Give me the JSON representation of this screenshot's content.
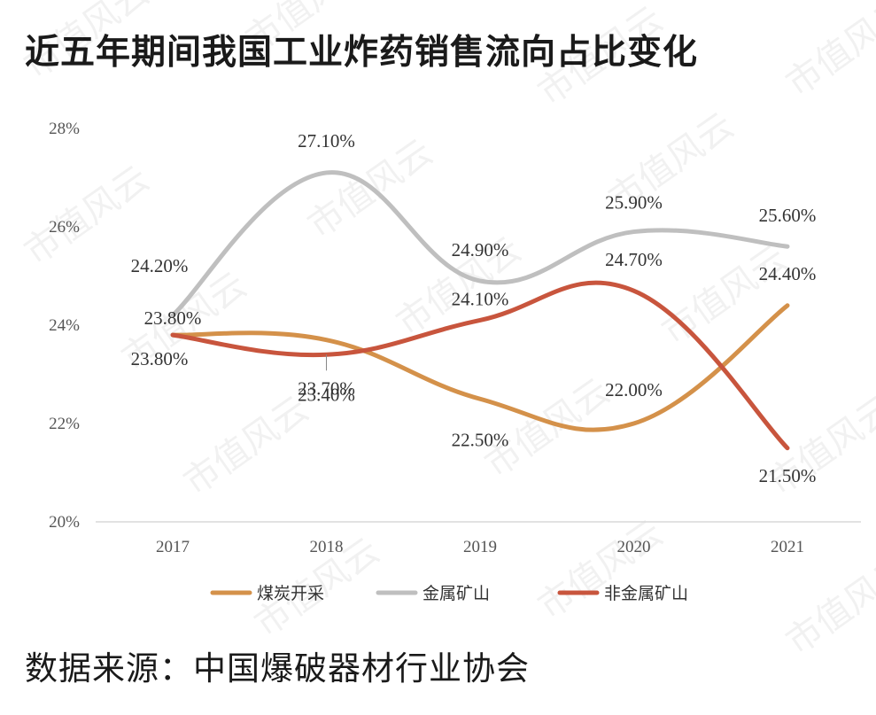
{
  "title": "近五年期间我国工业炸药销售流向占比变化",
  "source": "数据来源：中国爆破器材行业协会",
  "watermark": "市值风云",
  "chart_data": {
    "type": "line",
    "title": "近五年期间我国工业炸药销售流向占比变化",
    "x": [
      "2017",
      "2018",
      "2019",
      "2020",
      "2021"
    ],
    "ylim": [
      20,
      28
    ],
    "yticks": [
      20,
      22,
      24,
      26,
      28
    ],
    "ytick_labels": [
      "20%",
      "22%",
      "24%",
      "26%",
      "28%"
    ],
    "grid": false,
    "legend_position": "bottom",
    "smooth": true,
    "series": [
      {
        "name": "煤炭开采",
        "color": "#d4914a",
        "values": [
          23.8,
          23.7,
          22.5,
          22.0,
          24.4
        ],
        "labels": [
          "23.80%",
          "23.70%",
          "22.50%",
          "22.00%",
          "24.40%"
        ]
      },
      {
        "name": "金属矿山",
        "color": "#bfbfbf",
        "values": [
          24.2,
          27.1,
          24.9,
          25.9,
          25.6
        ],
        "labels": [
          "24.20%",
          "27.10%",
          "24.90%",
          "25.90%",
          "25.60%"
        ]
      },
      {
        "name": "非金属矿山",
        "color": "#c8553d",
        "values": [
          23.8,
          23.4,
          24.1,
          24.7,
          21.5
        ],
        "labels": [
          "23.80%",
          "23.40%",
          "24.10%",
          "24.70%",
          "21.50%"
        ]
      }
    ]
  }
}
